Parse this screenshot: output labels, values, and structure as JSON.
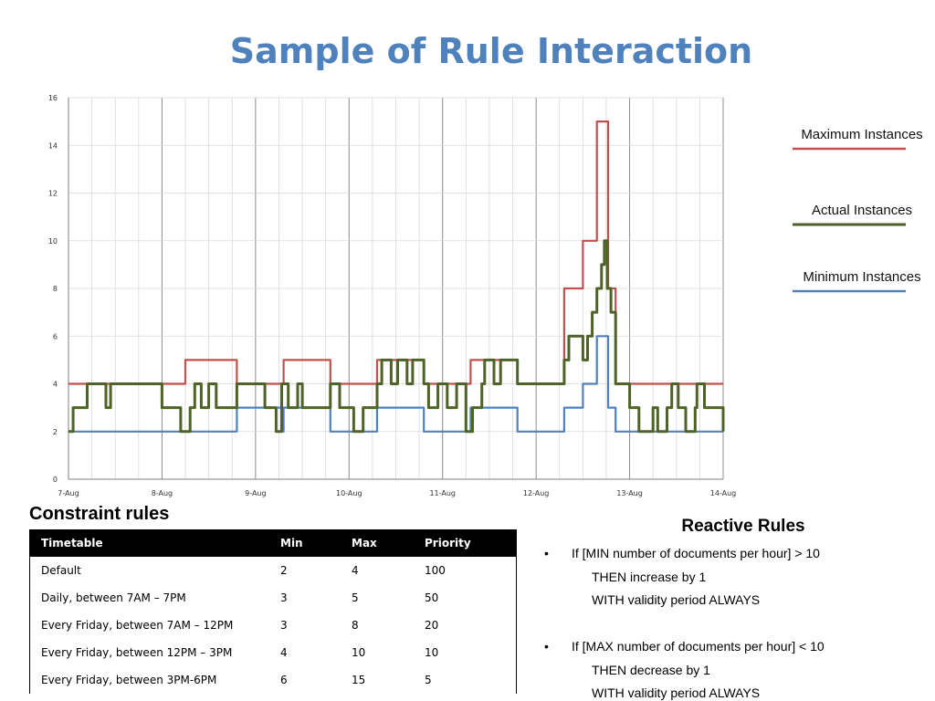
{
  "title": "Sample of Rule Interaction",
  "chart_data": {
    "type": "line",
    "x_tick_labels": [
      "7-Aug",
      "8-Aug",
      "9-Aug",
      "10-Aug",
      "11-Aug",
      "12-Aug",
      "13-Aug",
      "14-Aug"
    ],
    "y_tick_labels": [
      "0",
      "2",
      "4",
      "6",
      "8",
      "10",
      "12",
      "14",
      "16"
    ],
    "ylim": [
      0,
      16
    ],
    "xlim_days": [
      0,
      7
    ],
    "grid": true,
    "legend_position": "right",
    "series": [
      {
        "name": "Maximum Instances",
        "color": "#c0504d",
        "points": [
          [
            0,
            4
          ],
          [
            1.25,
            4
          ],
          [
            1.25,
            5
          ],
          [
            1.8,
            5
          ],
          [
            1.8,
            4
          ],
          [
            2.3,
            4
          ],
          [
            2.3,
            5
          ],
          [
            2.8,
            5
          ],
          [
            2.8,
            4
          ],
          [
            3.3,
            4
          ],
          [
            3.3,
            5
          ],
          [
            3.8,
            5
          ],
          [
            3.8,
            4
          ],
          [
            4.3,
            4
          ],
          [
            4.3,
            5
          ],
          [
            4.8,
            5
          ],
          [
            4.8,
            4
          ],
          [
            5.3,
            4
          ],
          [
            5.3,
            8
          ],
          [
            5.5,
            8
          ],
          [
            5.5,
            10
          ],
          [
            5.65,
            10
          ],
          [
            5.65,
            15
          ],
          [
            5.77,
            15
          ],
          [
            5.77,
            8
          ],
          [
            5.85,
            8
          ],
          [
            5.85,
            4
          ],
          [
            7,
            4
          ]
        ]
      },
      {
        "name": "Actual Instances",
        "color": "#4f6228",
        "points": [
          [
            0,
            2
          ],
          [
            0.05,
            2
          ],
          [
            0.05,
            3
          ],
          [
            0.2,
            3
          ],
          [
            0.2,
            4
          ],
          [
            0.4,
            4
          ],
          [
            0.4,
            3
          ],
          [
            0.45,
            3
          ],
          [
            0.45,
            4
          ],
          [
            1.0,
            4
          ],
          [
            1.0,
            3
          ],
          [
            1.2,
            3
          ],
          [
            1.2,
            2
          ],
          [
            1.3,
            2
          ],
          [
            1.3,
            3
          ],
          [
            1.35,
            3
          ],
          [
            1.35,
            4
          ],
          [
            1.42,
            4
          ],
          [
            1.42,
            3
          ],
          [
            1.5,
            3
          ],
          [
            1.5,
            4
          ],
          [
            1.58,
            4
          ],
          [
            1.58,
            3
          ],
          [
            1.8,
            3
          ],
          [
            1.8,
            4
          ],
          [
            2.1,
            4
          ],
          [
            2.1,
            3
          ],
          [
            2.22,
            3
          ],
          [
            2.22,
            2
          ],
          [
            2.28,
            2
          ],
          [
            2.28,
            4
          ],
          [
            2.35,
            4
          ],
          [
            2.35,
            3
          ],
          [
            2.45,
            3
          ],
          [
            2.45,
            4
          ],
          [
            2.5,
            4
          ],
          [
            2.5,
            3
          ],
          [
            2.8,
            3
          ],
          [
            2.8,
            4
          ],
          [
            2.9,
            4
          ],
          [
            2.9,
            3
          ],
          [
            3.05,
            3
          ],
          [
            3.05,
            2
          ],
          [
            3.15,
            2
          ],
          [
            3.15,
            3
          ],
          [
            3.3,
            3
          ],
          [
            3.3,
            4
          ],
          [
            3.35,
            4
          ],
          [
            3.35,
            5
          ],
          [
            3.45,
            5
          ],
          [
            3.45,
            4
          ],
          [
            3.52,
            4
          ],
          [
            3.52,
            5
          ],
          [
            3.62,
            5
          ],
          [
            3.62,
            4
          ],
          [
            3.68,
            4
          ],
          [
            3.68,
            5
          ],
          [
            3.8,
            5
          ],
          [
            3.8,
            4
          ],
          [
            3.85,
            4
          ],
          [
            3.85,
            3
          ],
          [
            3.95,
            3
          ],
          [
            3.95,
            4
          ],
          [
            4.05,
            4
          ],
          [
            4.05,
            3
          ],
          [
            4.15,
            3
          ],
          [
            4.15,
            4
          ],
          [
            4.25,
            4
          ],
          [
            4.25,
            2
          ],
          [
            4.32,
            2
          ],
          [
            4.32,
            3
          ],
          [
            4.42,
            3
          ],
          [
            4.42,
            4
          ],
          [
            4.45,
            4
          ],
          [
            4.45,
            5
          ],
          [
            4.55,
            5
          ],
          [
            4.55,
            4
          ],
          [
            4.62,
            4
          ],
          [
            4.62,
            5
          ],
          [
            4.8,
            5
          ],
          [
            4.8,
            4
          ],
          [
            5.3,
            4
          ],
          [
            5.3,
            5
          ],
          [
            5.35,
            5
          ],
          [
            5.35,
            6
          ],
          [
            5.5,
            6
          ],
          [
            5.5,
            5
          ],
          [
            5.55,
            5
          ],
          [
            5.55,
            6
          ],
          [
            5.6,
            6
          ],
          [
            5.6,
            7
          ],
          [
            5.65,
            7
          ],
          [
            5.65,
            8
          ],
          [
            5.7,
            8
          ],
          [
            5.7,
            9
          ],
          [
            5.73,
            9
          ],
          [
            5.73,
            10
          ],
          [
            5.76,
            10
          ],
          [
            5.76,
            8
          ],
          [
            5.8,
            8
          ],
          [
            5.8,
            7
          ],
          [
            5.85,
            7
          ],
          [
            5.85,
            4
          ],
          [
            6.0,
            4
          ],
          [
            6.0,
            3
          ],
          [
            6.1,
            3
          ],
          [
            6.1,
            2
          ],
          [
            6.25,
            2
          ],
          [
            6.25,
            3
          ],
          [
            6.3,
            3
          ],
          [
            6.3,
            2
          ],
          [
            6.4,
            2
          ],
          [
            6.4,
            3
          ],
          [
            6.45,
            3
          ],
          [
            6.45,
            4
          ],
          [
            6.52,
            4
          ],
          [
            6.52,
            3
          ],
          [
            6.6,
            3
          ],
          [
            6.6,
            2
          ],
          [
            6.7,
            2
          ],
          [
            6.7,
            3
          ],
          [
            6.72,
            3
          ],
          [
            6.72,
            4
          ],
          [
            6.8,
            4
          ],
          [
            6.8,
            3
          ],
          [
            7,
            3
          ],
          [
            7,
            2
          ]
        ]
      },
      {
        "name": "Minimum Instances",
        "color": "#4f81bd",
        "points": [
          [
            0,
            2
          ],
          [
            1.8,
            2
          ],
          [
            1.8,
            3
          ],
          [
            2.3,
            3
          ],
          [
            2.3,
            2
          ],
          [
            2.3,
            2
          ],
          [
            2.3,
            3
          ],
          [
            2.8,
            3
          ],
          [
            2.8,
            2
          ],
          [
            3.3,
            2
          ],
          [
            3.3,
            3
          ],
          [
            3.8,
            3
          ],
          [
            3.8,
            2
          ],
          [
            4.3,
            2
          ],
          [
            4.3,
            3
          ],
          [
            4.8,
            3
          ],
          [
            4.8,
            2
          ],
          [
            5.3,
            2
          ],
          [
            5.3,
            3
          ],
          [
            5.5,
            3
          ],
          [
            5.5,
            4
          ],
          [
            5.65,
            4
          ],
          [
            5.65,
            6
          ],
          [
            5.77,
            6
          ],
          [
            5.77,
            3
          ],
          [
            5.85,
            3
          ],
          [
            5.85,
            2
          ],
          [
            7,
            2
          ]
        ]
      }
    ]
  },
  "constraint_rules": {
    "title": "Constraint rules",
    "headers": [
      "Timetable",
      "Min",
      "Max",
      "Priority"
    ],
    "rows": [
      [
        "Default",
        "2",
        "4",
        "100"
      ],
      [
        "Daily, between  7AM – 7PM",
        "3",
        "5",
        "50"
      ],
      [
        "Every Friday, between 7AM – 12PM",
        "3",
        "8",
        "20"
      ],
      [
        "Every Friday, between 12PM – 3PM",
        "4",
        "10",
        "10"
      ],
      [
        "Every Friday, between 3PM-6PM",
        "6",
        "15",
        "5"
      ]
    ]
  },
  "reactive_rules": {
    "title": "Reactive Rules",
    "bullet": "•",
    "rules": [
      {
        "condition": "If [MIN  number  of  documents  per hour]  >  10",
        "action": "THEN   increase by 1",
        "validity": "WITH  validity  period ALWAYS"
      },
      {
        "condition": "If [MAX  number  of  documents  per  hour]  <  10",
        "action": "THEN   decrease by 1",
        "validity": "WITH  validity  period ALWAYS"
      }
    ]
  }
}
